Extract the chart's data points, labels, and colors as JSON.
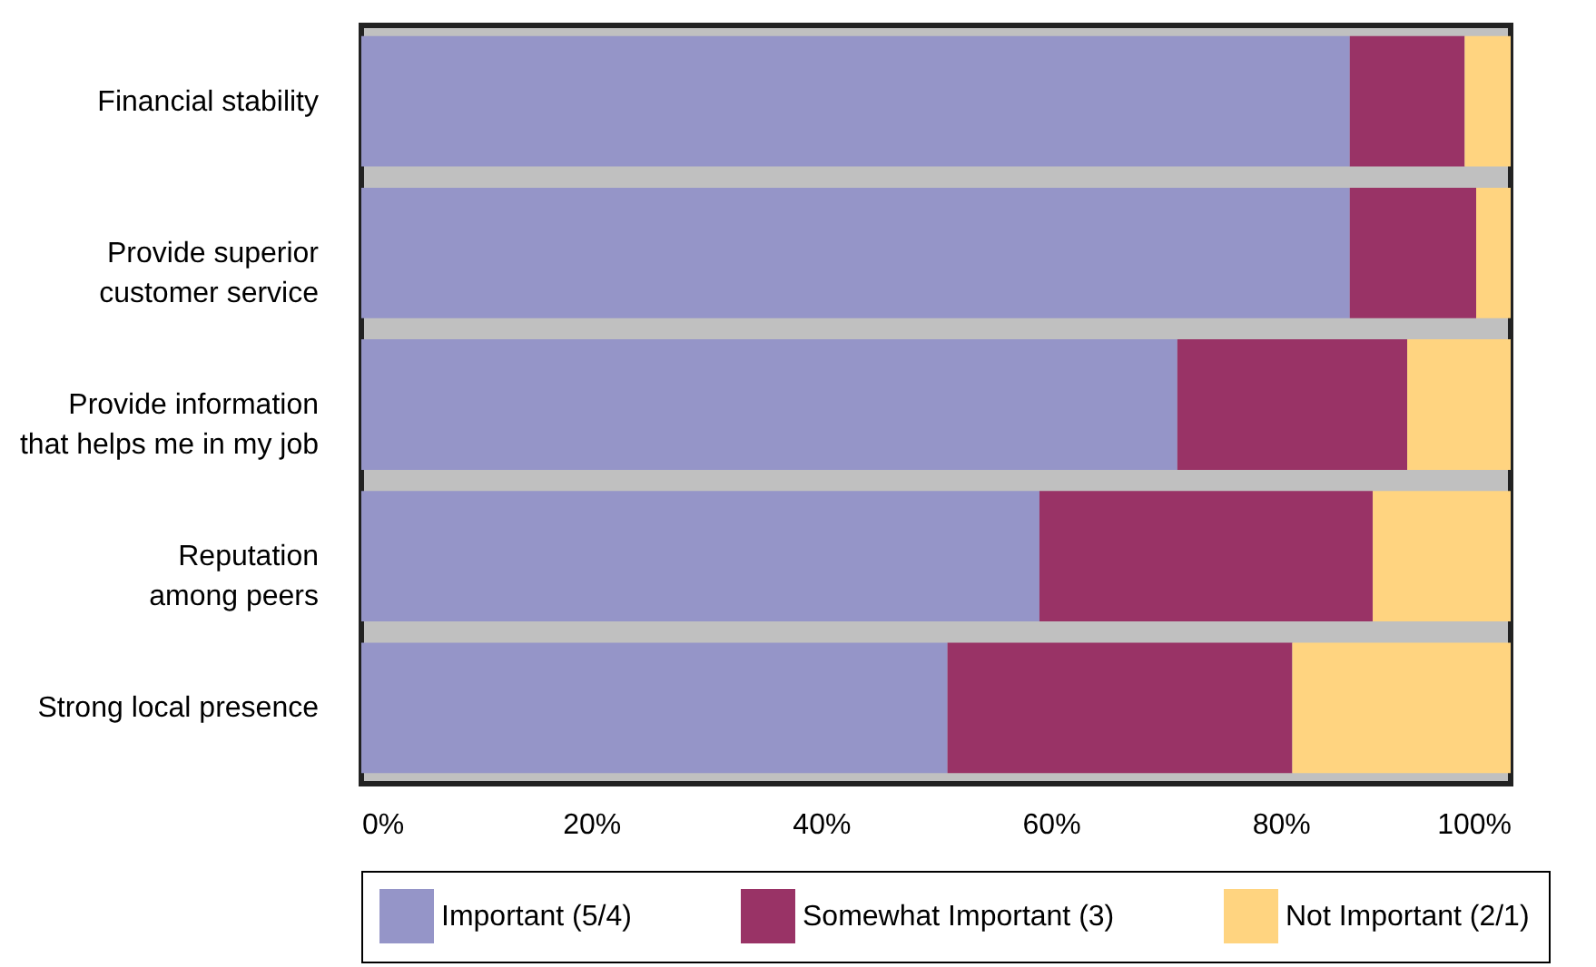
{
  "chart_data": {
    "type": "bar",
    "orientation": "horizontal",
    "stacked": true,
    "categories": [
      "Financial stability",
      "Provide superior\ncustomer service",
      "Provide information\nthat helps me in my job",
      "Reputation\namong peers",
      "Strong local presence"
    ],
    "series": [
      {
        "name": "Important (5/4)",
        "color": "#9595c8",
        "values": [
          86,
          86,
          71,
          59,
          51
        ]
      },
      {
        "name": "Somewhat Important (3)",
        "color": "#993366",
        "values": [
          10,
          11,
          20,
          29,
          30
        ]
      },
      {
        "name": "Not Important (2/1)",
        "color": "#ffd480",
        "values": [
          4,
          3,
          9,
          12,
          19
        ]
      }
    ],
    "xlim": [
      0,
      100
    ],
    "xticks": [
      {
        "value": 0,
        "label": "0%"
      },
      {
        "value": 20,
        "label": "20%"
      },
      {
        "value": 40,
        "label": "40%"
      },
      {
        "value": 60,
        "label": "60%"
      },
      {
        "value": 80,
        "label": "80%"
      },
      {
        "value": 100,
        "label": "100%"
      }
    ],
    "grid": false,
    "legend": "bottom"
  }
}
